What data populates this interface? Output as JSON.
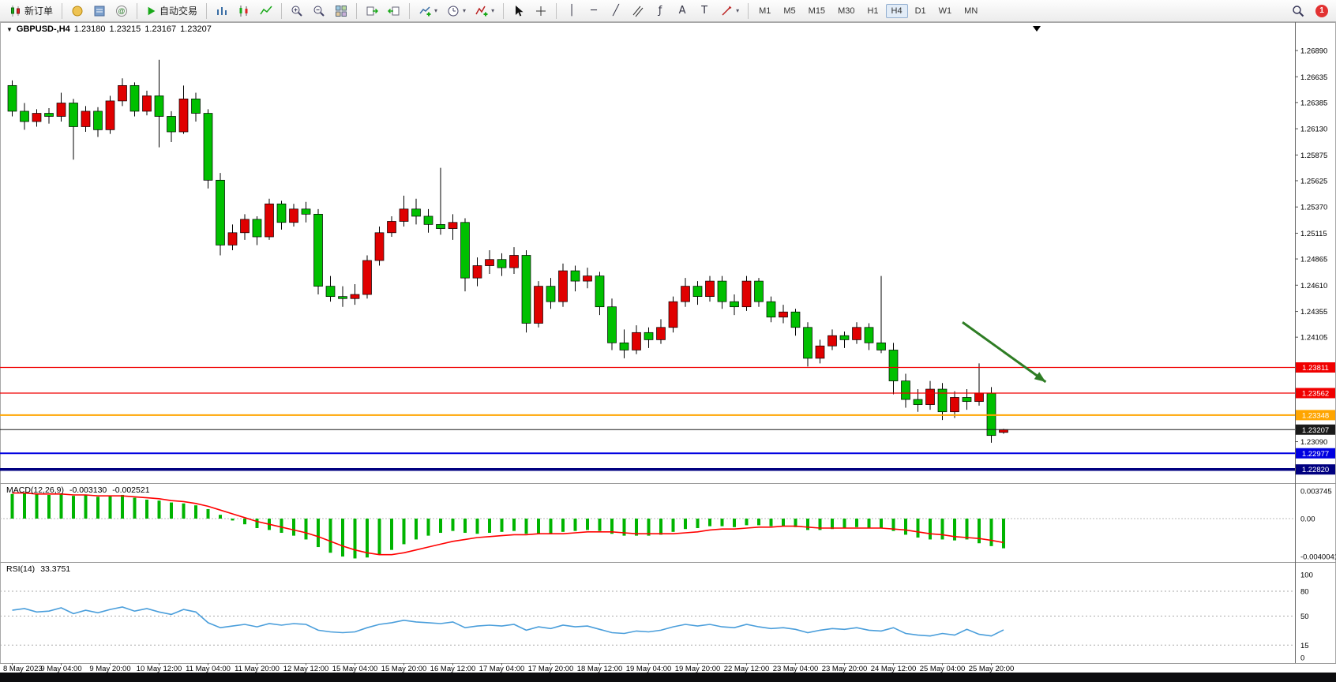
{
  "toolbar": {
    "new_order": "新订单",
    "autotrading": "自动交易",
    "timeframes": [
      "M1",
      "M5",
      "M15",
      "M30",
      "H1",
      "H4",
      "D1",
      "W1",
      "MN"
    ],
    "active_timeframe": "H4",
    "notification_count": "1"
  },
  "chart": {
    "symbol_period": "GBPUSD-,H4",
    "open": "1.23180",
    "high": "1.23215",
    "low": "1.23167",
    "close": "1.23207"
  },
  "chart_data": {
    "type": "candlestick",
    "symbol": "GBPUSD",
    "timeframe": "H4",
    "title": "GBPUSD-,H4 1.23180 1.23215 1.23167 1.23207",
    "y_axis": {
      "ticks": [
        "1.26890",
        "1.26635",
        "1.26385",
        "1.26130",
        "1.25875",
        "1.25625",
        "1.25370",
        "1.25115",
        "1.24865",
        "1.24610",
        "1.24355",
        "1.24105",
        "1.23090"
      ]
    },
    "x_labels": [
      "8 May 2023",
      "9 May 04:00",
      "9 May 20:00",
      "10 May 12:00",
      "11 May 04:00",
      "11 May 20:00",
      "12 May 12:00",
      "15 May 04:00",
      "15 May 20:00",
      "16 May 12:00",
      "17 May 04:00",
      "17 May 20:00",
      "18 May 12:00",
      "19 May 04:00",
      "19 May 20:00",
      "22 May 12:00",
      "23 May 04:00",
      "23 May 20:00",
      "24 May 12:00",
      "25 May 04:00",
      "25 May 20:00"
    ],
    "candles": [
      [
        1.2655,
        1.266,
        1.2625,
        1.263
      ],
      [
        1.263,
        1.2638,
        1.2612,
        1.262
      ],
      [
        1.262,
        1.2632,
        1.2615,
        1.2628
      ],
      [
        1.2628,
        1.2633,
        1.2618,
        1.2625
      ],
      [
        1.2625,
        1.2648,
        1.262,
        1.2638
      ],
      [
        1.2638,
        1.2642,
        1.2583,
        1.2615
      ],
      [
        1.2615,
        1.2635,
        1.261,
        1.263
      ],
      [
        1.263,
        1.2634,
        1.2605,
        1.2612
      ],
      [
        1.2612,
        1.2645,
        1.2608,
        1.264
      ],
      [
        1.264,
        1.2662,
        1.2635,
        1.2655
      ],
      [
        1.2655,
        1.2658,
        1.2625,
        1.263
      ],
      [
        1.263,
        1.265,
        1.2626,
        1.2645
      ],
      [
        1.2645,
        1.268,
        1.2595,
        1.2625
      ],
      [
        1.2625,
        1.263,
        1.26,
        1.261
      ],
      [
        1.261,
        1.2655,
        1.2608,
        1.2642
      ],
      [
        1.2642,
        1.2648,
        1.262,
        1.2628
      ],
      [
        1.2628,
        1.2632,
        1.2555,
        1.2563
      ],
      [
        1.2563,
        1.257,
        1.249,
        1.25
      ],
      [
        1.25,
        1.252,
        1.2495,
        1.2512
      ],
      [
        1.2512,
        1.253,
        1.2505,
        1.2525
      ],
      [
        1.2525,
        1.2528,
        1.25,
        1.2508
      ],
      [
        1.2508,
        1.2545,
        1.2505,
        1.254
      ],
      [
        1.254,
        1.2543,
        1.2515,
        1.2522
      ],
      [
        1.2522,
        1.254,
        1.2518,
        1.2535
      ],
      [
        1.2535,
        1.2542,
        1.2522,
        1.253
      ],
      [
        1.253,
        1.2535,
        1.2452,
        1.246
      ],
      [
        1.246,
        1.247,
        1.2445,
        1.245
      ],
      [
        1.245,
        1.246,
        1.244,
        1.2448
      ],
      [
        1.2448,
        1.2462,
        1.2442,
        1.2452
      ],
      [
        1.2452,
        1.249,
        1.2448,
        1.2485
      ],
      [
        1.2485,
        1.2518,
        1.248,
        1.2512
      ],
      [
        1.2512,
        1.2528,
        1.2508,
        1.2523
      ],
      [
        1.2523,
        1.2548,
        1.2518,
        1.2535
      ],
      [
        1.2535,
        1.2545,
        1.252,
        1.2528
      ],
      [
        1.2528,
        1.2535,
        1.2512,
        1.252
      ],
      [
        1.252,
        1.2575,
        1.251,
        1.2516
      ],
      [
        1.2516,
        1.253,
        1.2505,
        1.2522
      ],
      [
        1.2522,
        1.2526,
        1.2455,
        1.2468
      ],
      [
        1.2468,
        1.2488,
        1.246,
        1.248
      ],
      [
        1.248,
        1.2495,
        1.2472,
        1.2486
      ],
      [
        1.2486,
        1.2492,
        1.247,
        1.2478
      ],
      [
        1.2478,
        1.2498,
        1.2472,
        1.249
      ],
      [
        1.249,
        1.2495,
        1.2415,
        1.2424
      ],
      [
        1.2424,
        1.2465,
        1.242,
        1.246
      ],
      [
        1.246,
        1.2468,
        1.2438,
        1.2445
      ],
      [
        1.2445,
        1.2482,
        1.244,
        1.2475
      ],
      [
        1.2475,
        1.248,
        1.2455,
        1.2465
      ],
      [
        1.2465,
        1.2478,
        1.2458,
        1.247
      ],
      [
        1.247,
        1.2474,
        1.2432,
        1.244
      ],
      [
        1.244,
        1.2448,
        1.2398,
        1.2405
      ],
      [
        1.2405,
        1.2418,
        1.239,
        1.2398
      ],
      [
        1.2398,
        1.2422,
        1.2394,
        1.2415
      ],
      [
        1.2415,
        1.242,
        1.24,
        1.2408
      ],
      [
        1.2408,
        1.2428,
        1.2404,
        1.242
      ],
      [
        1.242,
        1.245,
        1.2415,
        1.2445
      ],
      [
        1.2445,
        1.2468,
        1.244,
        1.246
      ],
      [
        1.246,
        1.2465,
        1.2442,
        1.245
      ],
      [
        1.245,
        1.247,
        1.2445,
        1.2465
      ],
      [
        1.2465,
        1.247,
        1.2438,
        1.2445
      ],
      [
        1.2445,
        1.2452,
        1.2432,
        1.244
      ],
      [
        1.244,
        1.247,
        1.2436,
        1.2465
      ],
      [
        1.2465,
        1.2468,
        1.244,
        1.2445
      ],
      [
        1.2445,
        1.245,
        1.2425,
        1.243
      ],
      [
        1.243,
        1.2442,
        1.2424,
        1.2435
      ],
      [
        1.2435,
        1.2438,
        1.2412,
        1.242
      ],
      [
        1.242,
        1.2425,
        1.2382,
        1.239
      ],
      [
        1.239,
        1.2408,
        1.2385,
        1.2402
      ],
      [
        1.2402,
        1.2418,
        1.2398,
        1.2412
      ],
      [
        1.2412,
        1.2416,
        1.24,
        1.2408
      ],
      [
        1.2408,
        1.2425,
        1.2404,
        1.242
      ],
      [
        1.242,
        1.2424,
        1.2398,
        1.2405
      ],
      [
        1.2405,
        1.247,
        1.2395,
        1.2398
      ],
      [
        1.2398,
        1.2405,
        1.2355,
        1.2368
      ],
      [
        1.2368,
        1.2375,
        1.2342,
        1.235
      ],
      [
        1.235,
        1.236,
        1.2338,
        1.2345
      ],
      [
        1.2345,
        1.2368,
        1.234,
        1.236
      ],
      [
        1.236,
        1.2366,
        1.233,
        1.2338
      ],
      [
        1.2338,
        1.2358,
        1.2332,
        1.2352
      ],
      [
        1.2352,
        1.236,
        1.234,
        1.2348
      ],
      [
        1.2348,
        1.2385,
        1.2344,
        1.2356
      ],
      [
        1.2356,
        1.2362,
        1.2308,
        1.2315
      ],
      [
        1.2318,
        1.23215,
        1.23167,
        1.23207
      ]
    ],
    "hlines": [
      {
        "price": 1.23811,
        "label": "1.23811",
        "color": "#f00000",
        "width": 1.2,
        "dash": false
      },
      {
        "price": 1.23562,
        "label": "1.23562",
        "color": "#f00000",
        "width": 1.2,
        "dash": false
      },
      {
        "price": 1.23348,
        "label": "1.23348",
        "color": "#ffa500",
        "width": 2,
        "dash": false
      },
      {
        "price": 1.23207,
        "label": "1.23207",
        "color": "#1a1a1a",
        "width": 1,
        "dash": false
      },
      {
        "price": 1.22977,
        "label": "1.22977",
        "color": "#0000e0",
        "width": 2,
        "dash": false
      },
      {
        "price": 1.2282,
        "label": "1.22820",
        "color": "#000080",
        "width": 3.5,
        "dash": false
      }
    ],
    "arrow": {
      "from": {
        "bar": 78,
        "price": 1.2425
      },
      "to": {
        "bar": 84.8,
        "price": 1.2367
      },
      "color": "#2e7d24"
    },
    "macd": {
      "label": "MACD(12,26,9)",
      "value": "-0.003130",
      "signal_value": "-0.002521",
      "scale": [
        "0.003745",
        "0.00",
        "-0.0040041"
      ],
      "histogram": [
        0.0026,
        0.0027,
        0.0026,
        0.0025,
        0.0026,
        0.0024,
        0.0025,
        0.0023,
        0.0024,
        0.0025,
        0.0022,
        0.002,
        0.0019,
        0.0017,
        0.0016,
        0.0014,
        0.001,
        0.0004,
        -0.0002,
        -0.0006,
        -0.001,
        -0.0012,
        -0.0015,
        -0.0018,
        -0.0022,
        -0.003,
        -0.0036,
        -0.004,
        -0.0042,
        -0.0041,
        -0.0038,
        -0.0033,
        -0.0027,
        -0.0022,
        -0.0018,
        -0.0015,
        -0.0013,
        -0.0015,
        -0.0016,
        -0.0015,
        -0.0014,
        -0.0013,
        -0.0016,
        -0.0016,
        -0.0016,
        -0.0014,
        -0.0013,
        -0.0012,
        -0.0013,
        -0.0016,
        -0.0018,
        -0.0018,
        -0.0018,
        -0.0017,
        -0.0014,
        -0.0011,
        -0.001,
        -0.0008,
        -0.0008,
        -0.0009,
        -0.0007,
        -0.0007,
        -0.0008,
        -0.0008,
        -0.0009,
        -0.0012,
        -0.0012,
        -0.0011,
        -0.001,
        -0.0009,
        -0.001,
        -0.001,
        -0.0013,
        -0.0017,
        -0.002,
        -0.0022,
        -0.0022,
        -0.0023,
        -0.0022,
        -0.0026,
        -0.0029,
        -0.00313
      ],
      "signal": [
        0.0027,
        0.0027,
        0.0026,
        0.0026,
        0.0026,
        0.0025,
        0.0025,
        0.0024,
        0.0024,
        0.0024,
        0.0023,
        0.0022,
        0.0021,
        0.0019,
        0.0018,
        0.0016,
        0.0013,
        0.0009,
        0.0005,
        0.0001,
        -0.0003,
        -0.0006,
        -0.0009,
        -0.0012,
        -0.0015,
        -0.0019,
        -0.0024,
        -0.0029,
        -0.0033,
        -0.0036,
        -0.0038,
        -0.0038,
        -0.0036,
        -0.0033,
        -0.003,
        -0.0027,
        -0.0024,
        -0.0022,
        -0.002,
        -0.0019,
        -0.0018,
        -0.0017,
        -0.0017,
        -0.0016,
        -0.0016,
        -0.0016,
        -0.0015,
        -0.0014,
        -0.0014,
        -0.0014,
        -0.0015,
        -0.0016,
        -0.0016,
        -0.0016,
        -0.0016,
        -0.0015,
        -0.0014,
        -0.0012,
        -0.0011,
        -0.0011,
        -0.001,
        -0.0009,
        -0.0009,
        -0.0008,
        -0.0008,
        -0.0009,
        -0.001,
        -0.001,
        -0.001,
        -0.001,
        -0.001,
        -0.001,
        -0.0011,
        -0.0012,
        -0.0014,
        -0.0016,
        -0.0017,
        -0.0019,
        -0.002,
        -0.0021,
        -0.0023,
        -0.002521
      ]
    },
    "rsi": {
      "label": "RSI(14)",
      "value": "33.3751",
      "levels": [
        80,
        50,
        15
      ],
      "scale": [
        "100",
        "80",
        "50",
        "15",
        "0"
      ],
      "values": [
        57,
        59,
        55,
        56,
        60,
        53,
        57,
        54,
        58,
        61,
        56,
        59,
        55,
        52,
        58,
        55,
        42,
        36,
        38,
        40,
        37,
        41,
        39,
        41,
        40,
        33,
        31,
        30,
        31,
        36,
        40,
        42,
        45,
        43,
        42,
        41,
        43,
        36,
        38,
        39,
        38,
        40,
        33,
        37,
        35,
        39,
        37,
        38,
        34,
        30,
        29,
        32,
        31,
        33,
        37,
        40,
        38,
        40,
        37,
        36,
        40,
        37,
        35,
        36,
        34,
        30,
        33,
        35,
        34,
        36,
        33,
        32,
        36,
        29,
        27,
        26,
        29,
        27,
        34,
        28,
        26,
        33.3751
      ]
    },
    "colors": {
      "up": "#e00000",
      "down": "#00c000",
      "wick": "#000000",
      "macd_hist": "#00b400",
      "macd_signal": "#ff0000",
      "rsi_line": "#4a9edb"
    }
  }
}
